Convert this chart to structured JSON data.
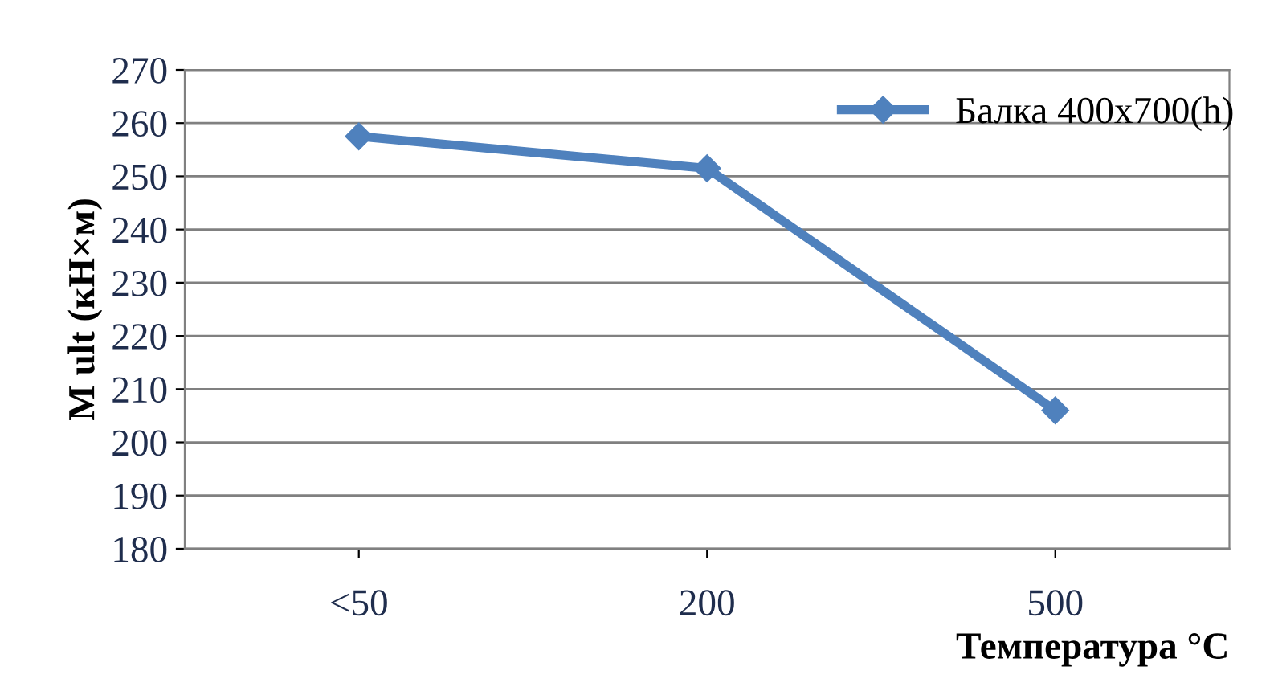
{
  "chart_data": {
    "type": "line",
    "xlabel": "Температура °C",
    "ylabel": "M ult (кН×м)",
    "categories": [
      "<50",
      "200",
      "500"
    ],
    "series": [
      {
        "name": "Балка 400x700(h)",
        "color": "#4f81bd",
        "values": [
          257.5,
          251.5,
          206
        ]
      }
    ],
    "ylim": [
      180,
      270
    ],
    "yticks": [
      180,
      190,
      200,
      210,
      220,
      230,
      240,
      250,
      260,
      270
    ],
    "grid": "y",
    "legend": "top right",
    "marker": "diamond",
    "line_style": "solid"
  }
}
